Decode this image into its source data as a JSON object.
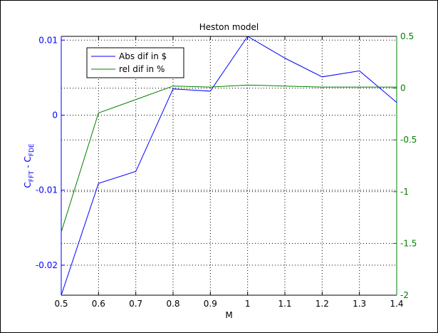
{
  "chart_data": {
    "type": "line",
    "title": "Heston model",
    "xlabel": "M",
    "ylabel_left": {
      "main": "C",
      "sub1": "FFT",
      "sep": " - C",
      "sub2": "FDE"
    },
    "ylabel_right": "",
    "xlim": [
      0.5,
      1.4
    ],
    "ylim_left": [
      -0.024,
      0.0105
    ],
    "ylim_right": [
      -2,
      0.5
    ],
    "grid": true,
    "legend_placement": "top-left",
    "x_ticks": [
      "0.5",
      "0.6",
      "0.7",
      "0.8",
      "0.9",
      "1",
      "1.1",
      "1.2",
      "1.3",
      "1.4"
    ],
    "y_left_ticks": [
      "0.01",
      "0",
      "-0.01",
      "-0.02"
    ],
    "y_right_ticks": [
      "0.5",
      "0",
      "-0.5",
      "-1",
      "-1.5",
      "-2"
    ],
    "x": [
      0.5,
      0.6,
      0.7,
      0.8,
      0.9,
      1.0,
      1.1,
      1.2,
      1.3,
      1.4
    ],
    "series": [
      {
        "name": "Abs dif in $",
        "axis": "left",
        "color": "#0000ff",
        "values": [
          -0.024,
          -0.0091,
          -0.0075,
          0.0035,
          0.0032,
          0.0105,
          0.0076,
          0.0051,
          0.0059,
          0.0017
        ]
      },
      {
        "name": "rel dif in %",
        "axis": "right",
        "color": "#008000",
        "values": [
          -1.39,
          -0.24,
          -0.11,
          0.02,
          0.01,
          0.03,
          0.02,
          0.01,
          0.01,
          0.01
        ]
      }
    ]
  },
  "colors": {
    "left_axis": "#0000ff",
    "right_axis": "#008000",
    "grid": "#000000"
  }
}
